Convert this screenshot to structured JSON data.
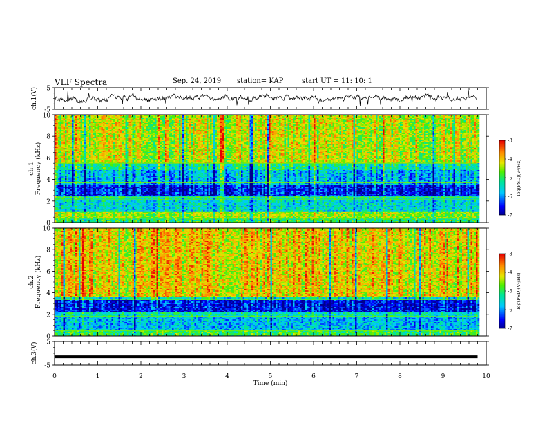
{
  "header": {
    "title": "VLF Spectra",
    "date": "Sep. 24, 2019",
    "station": "station= KAP",
    "start": "start  UT =   11: 10: 1"
  },
  "chart_data": [
    {
      "type": "line",
      "panel": "ch1-waveform",
      "ylabel": "ch.1(V)",
      "xlabel": "",
      "xlim": [
        0,
        10
      ],
      "ylim": [
        -5,
        5
      ],
      "yticks": [
        -5,
        5
      ],
      "series": [
        {
          "color": "#000000",
          "data_span_min": [
            0,
            9.8
          ],
          "typical_range": [
            -2.5,
            2.5
          ]
        }
      ]
    },
    {
      "type": "heatmap",
      "panel": "ch1-spectrogram",
      "ylabel": "ch.1 Frequency (kHz)",
      "xlim": [
        0,
        10
      ],
      "ylim": [
        0,
        10
      ],
      "yticks": [
        0,
        2,
        4,
        6,
        8,
        10
      ],
      "data_span_min": [
        0,
        9.8
      ],
      "bands_khz": [
        {
          "from": 0,
          "to": 0.4,
          "level": 0.5
        },
        {
          "from": 0.4,
          "to": 1.0,
          "level": 0.62
        },
        {
          "from": 1.0,
          "to": 2.0,
          "level": 0.36
        },
        {
          "from": 2.0,
          "to": 2.5,
          "level": 0.44
        },
        {
          "from": 2.5,
          "to": 3.5,
          "level": 0.12
        },
        {
          "from": 3.5,
          "to": 4.9,
          "level": 0.3
        },
        {
          "from": 4.9,
          "to": 5.5,
          "level": 0.42
        },
        {
          "from": 5.5,
          "to": 10,
          "level": 0.66
        }
      ],
      "lines_khz": [
        0.4,
        1.0,
        2.1,
        2.3,
        3.7,
        5.5,
        6.8
      ],
      "colorbar": {
        "label": "log(PSD)(V²/Hz)",
        "range": [
          -7,
          -3
        ],
        "ticks": [
          -3,
          -4,
          -5,
          -6,
          -7
        ]
      }
    },
    {
      "type": "heatmap",
      "panel": "ch2-spectrogram",
      "ylabel": "ch.2 Frequency (kHz)",
      "xlim": [
        0,
        10
      ],
      "ylim": [
        0,
        10
      ],
      "yticks": [
        0,
        2,
        4,
        6,
        8,
        10
      ],
      "data_span_min": [
        0,
        9.8
      ],
      "bands_khz": [
        {
          "from": 0,
          "to": 0.5,
          "level": 0.52
        },
        {
          "from": 0.5,
          "to": 1.8,
          "level": 0.32
        },
        {
          "from": 1.8,
          "to": 2.2,
          "level": 0.42
        },
        {
          "from": 2.2,
          "to": 3.3,
          "level": 0.12
        },
        {
          "from": 3.3,
          "to": 3.6,
          "level": 0.4
        },
        {
          "from": 3.6,
          "to": 10,
          "level": 0.74
        }
      ],
      "lines_khz": [
        0.5,
        1.8,
        3.4
      ],
      "colorbar": {
        "label": "log(PSD)(V²/Hz)",
        "range": [
          -7,
          -3
        ],
        "ticks": [
          -3,
          -4,
          -5,
          -6,
          -7
        ]
      }
    },
    {
      "type": "line",
      "panel": "ch3-waveform",
      "ylabel": "ch.3(V)",
      "xlabel": "Time  (min)",
      "xlim": [
        0,
        10
      ],
      "ylim": [
        -5,
        5
      ],
      "yticks": [
        -5,
        5
      ],
      "xticks": [
        0,
        1,
        2,
        3,
        4,
        5,
        6,
        7,
        8,
        9,
        10
      ],
      "series": [
        {
          "color": "#000000",
          "data_span_min": [
            0,
            9.8
          ],
          "constant_value": -1.5
        }
      ]
    }
  ]
}
